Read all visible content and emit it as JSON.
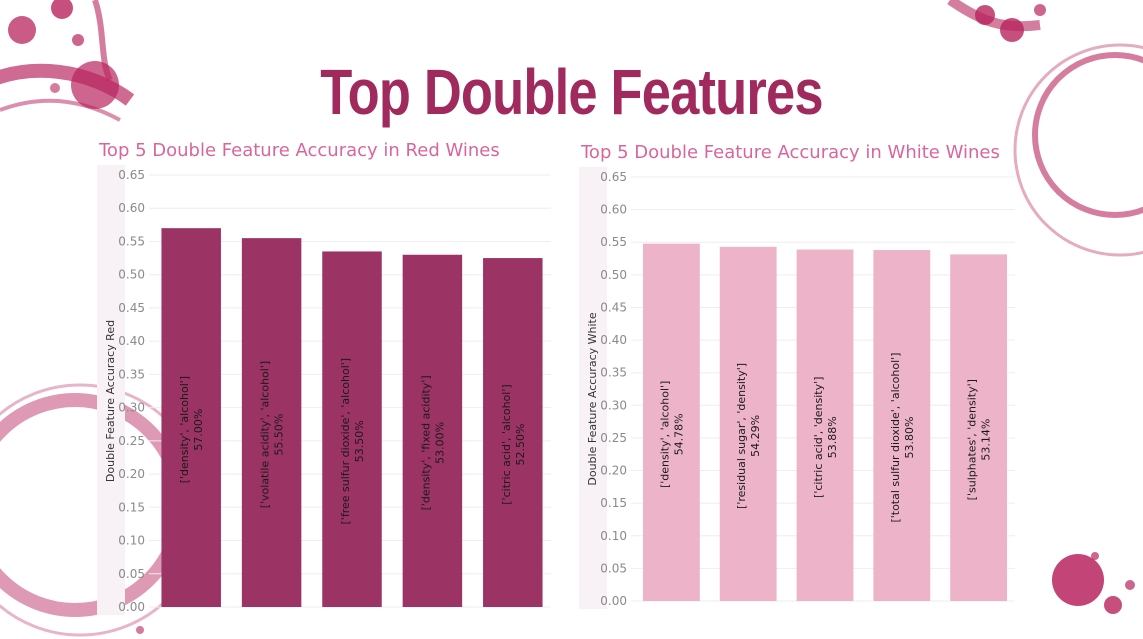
{
  "title": "Top Double Features",
  "colors": {
    "title": "#a02a5e",
    "chart_title": "#d9669b",
    "red_bar": "#9b3364",
    "white_bar": "#edb4c9",
    "stain": "#b8235e"
  },
  "chart_data": [
    {
      "type": "bar",
      "title": "Top 5 Double Feature Accuracy in Red Wines",
      "ylabel": "Double Feature Accuracy Red",
      "ylim": [
        0,
        0.65
      ],
      "yticks": [
        "0.00",
        "0.05",
        "0.10",
        "0.15",
        "0.20",
        "0.25",
        "0.30",
        "0.35",
        "0.40",
        "0.45",
        "0.50",
        "0.55",
        "0.60",
        "0.65"
      ],
      "grid": true,
      "categories": [
        "['density', 'alcohol']",
        "['volatile acidity', 'alcohol']",
        "['free sulfur dioxide', 'alcohol']",
        "['density', 'fixed acidity']",
        "['citric acid', 'alcohol']"
      ],
      "values": [
        0.57,
        0.555,
        0.535,
        0.53,
        0.525
      ],
      "value_labels": [
        "57.00%",
        "55.50%",
        "53.50%",
        "53.00%",
        "52.50%"
      ]
    },
    {
      "type": "bar",
      "title": "Top 5 Double Feature Accuracy in White Wines",
      "ylabel": "Double Feature Accuracy White",
      "ylim": [
        0,
        0.65
      ],
      "yticks": [
        "0.00",
        "0.05",
        "0.10",
        "0.15",
        "0.20",
        "0.25",
        "0.30",
        "0.35",
        "0.40",
        "0.45",
        "0.50",
        "0.55",
        "0.60",
        "0.65"
      ],
      "grid": true,
      "categories": [
        "['density', 'alcohol']",
        "['residual sugar', 'density']",
        "['citric acid', 'density']",
        "['total sulfur dioxide', 'alcohol']",
        "['sulphates', 'density']"
      ],
      "values": [
        0.5478,
        0.5429,
        0.5388,
        0.538,
        0.5314
      ],
      "value_labels": [
        "54.78%",
        "54.29%",
        "53.88%",
        "53.80%",
        "53.14%"
      ]
    }
  ]
}
